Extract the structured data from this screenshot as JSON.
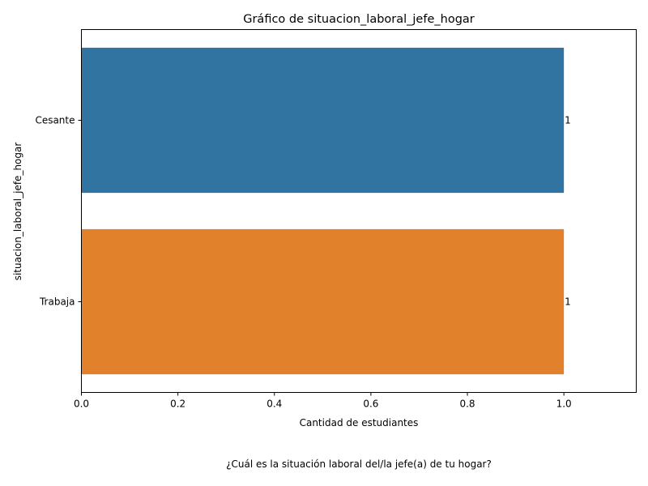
{
  "chart_data": {
    "type": "bar",
    "orientation": "horizontal",
    "title": "Gráfico de situacion_laboral_jefe_hogar",
    "xlabel": "Cantidad de estudiantes",
    "ylabel": "situacion_laboral_jefe_hogar",
    "categories": [
      "Cesante",
      "Trabaja"
    ],
    "values": [
      1,
      1
    ],
    "data_labels": [
      "1",
      "1"
    ],
    "colors": [
      "#3274a1",
      "#e1812c"
    ],
    "xlim": [
      0,
      1.15
    ],
    "xticks": [
      "0.0",
      "0.2",
      "0.4",
      "0.6",
      "0.8",
      "1.0"
    ],
    "grid": false,
    "legend": "none"
  },
  "caption": "¿Cuál es la situación laboral del/la jefe(a) de tu hogar?"
}
